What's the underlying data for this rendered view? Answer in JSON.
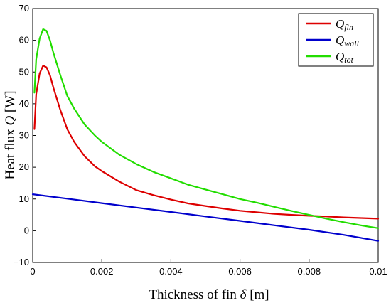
{
  "chart_data": {
    "type": "line",
    "title": "",
    "xlabel": "Thickness of fin",
    "xlabel_symbol": "δ",
    "xlabel_unit": "[m]",
    "ylabel": "Heat flux",
    "ylabel_symbol": "Q",
    "ylabel_unit": "[W]",
    "xlim": [
      0,
      0.01
    ],
    "ylim": [
      -10,
      70
    ],
    "x_ticks": [
      0,
      0.002,
      0.004,
      0.006,
      0.008,
      0.01
    ],
    "x_tick_labels": [
      "0",
      "0.002",
      "0.004",
      "0.006",
      "0.008",
      "0.01"
    ],
    "y_ticks": [
      -10,
      0,
      10,
      20,
      30,
      40,
      50,
      60,
      70
    ],
    "y_tick_labels": [
      "−10",
      "0",
      "10",
      "20",
      "30",
      "40",
      "50",
      "60",
      "70"
    ],
    "grid": false,
    "legend_position": "top-right",
    "series": [
      {
        "name": "Q",
        "subscript": "fin",
        "color": "#dd0000",
        "x": [
          5e-05,
          0.0001,
          0.0002,
          0.0003,
          0.0004,
          0.0005,
          0.0006,
          0.0008,
          0.001,
          0.0012,
          0.0015,
          0.0018,
          0.002,
          0.0025,
          0.003,
          0.0035,
          0.004,
          0.0045,
          0.005,
          0.0055,
          0.006,
          0.0065,
          0.007,
          0.0075,
          0.008,
          0.0085,
          0.009,
          0.0095,
          0.01
        ],
        "values": [
          32,
          43,
          49.5,
          52,
          51.5,
          49,
          45,
          38,
          32,
          28,
          23.5,
          20.3,
          18.8,
          15.5,
          12.8,
          11.2,
          9.8,
          8.6,
          7.8,
          7.0,
          6.3,
          5.8,
          5.3,
          5.0,
          4.7,
          4.5,
          4.2,
          4.0,
          3.8
        ]
      },
      {
        "name": "Q",
        "subscript": "wall",
        "color": "#0000cc",
        "x": [
          0,
          0.001,
          0.002,
          0.003,
          0.004,
          0.005,
          0.006,
          0.007,
          0.008,
          0.009,
          0.01
        ],
        "values": [
          11.5,
          10.1,
          8.7,
          7.3,
          5.9,
          4.5,
          3.1,
          1.7,
          0.3,
          -1.3,
          -3.2
        ]
      },
      {
        "name": "Q",
        "subscript": "tot",
        "color": "#22dd00",
        "x": [
          5e-05,
          0.0001,
          0.0002,
          0.0003,
          0.0004,
          0.0005,
          0.0006,
          0.0008,
          0.001,
          0.0012,
          0.0015,
          0.0018,
          0.002,
          0.0025,
          0.003,
          0.0035,
          0.004,
          0.0045,
          0.005,
          0.0055,
          0.006,
          0.0065,
          0.007,
          0.0075,
          0.008,
          0.0085,
          0.009,
          0.0095,
          0.01
        ],
        "values": [
          43.5,
          54,
          60.5,
          63.5,
          63,
          60,
          56,
          49,
          42.5,
          38.5,
          33.5,
          30,
          28,
          24,
          21,
          18.5,
          16.5,
          14.5,
          13,
          11.5,
          10,
          8.8,
          7.5,
          6.2,
          5,
          3.8,
          2.7,
          1.7,
          0.8
        ]
      }
    ]
  }
}
